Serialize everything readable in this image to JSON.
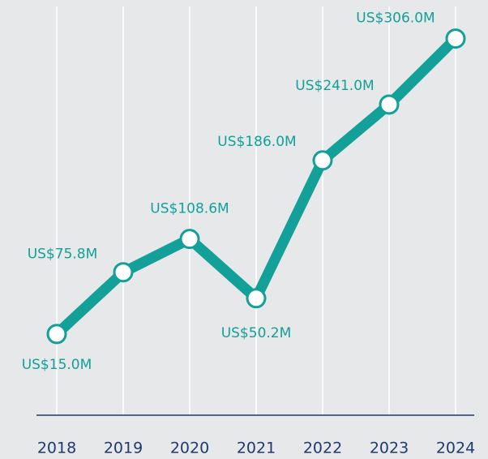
{
  "chart_data": {
    "type": "line",
    "categories": [
      "2018",
      "2019",
      "2020",
      "2021",
      "2022",
      "2023",
      "2024"
    ],
    "series": [
      {
        "color": "#12a098",
        "values": [
          15.0,
          75.8,
          108.6,
          50.2,
          186.0,
          241.0,
          306.0
        ],
        "value_labels": [
          "US$15.0M",
          "US$75.8M",
          "US$108.6M",
          "US$50.2M",
          "US$186.0M",
          "US$241.0M",
          "US$306.0M"
        ]
      }
    ],
    "ylim": [
      -65,
      344
    ],
    "grid": true
  }
}
